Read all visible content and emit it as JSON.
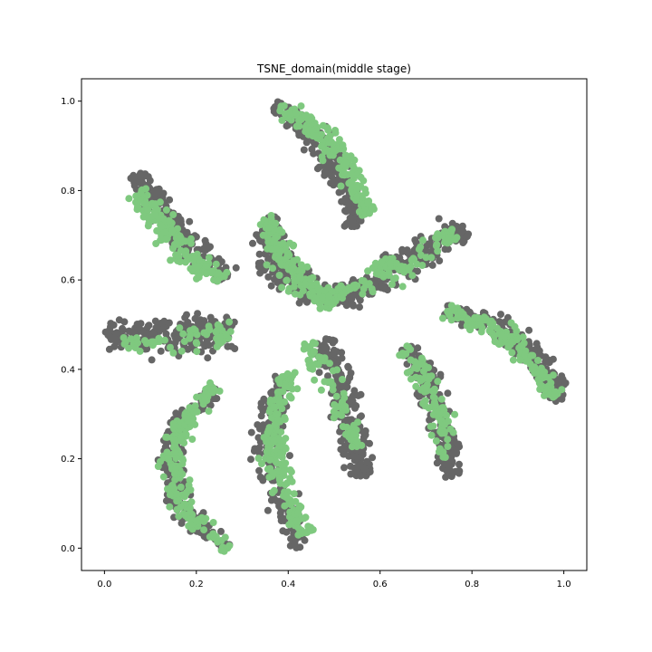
{
  "chart_data": {
    "type": "scatter",
    "title": "TSNE_domain(middle stage)",
    "xlabel": "",
    "ylabel": "",
    "xlim": [
      -0.05,
      1.05
    ],
    "ylim": [
      -0.05,
      1.05
    ],
    "grid": false,
    "legend": "none",
    "x_ticks": [
      0.0,
      0.2,
      0.4,
      0.6,
      0.8,
      1.0
    ],
    "x_tick_labels": [
      "0.0",
      "0.2",
      "0.4",
      "0.6",
      "0.8",
      "1.0"
    ],
    "y_ticks": [
      0.0,
      0.2,
      0.4,
      0.6,
      0.8,
      1.0
    ],
    "y_tick_labels": [
      "0.0",
      "0.2",
      "0.4",
      "0.6",
      "0.8",
      "1.0"
    ],
    "series": [
      {
        "color": "#666666",
        "clusters": [
          {
            "path": [
              [
                0.0,
                0.48
              ],
              [
                0.08,
                0.48
              ],
              [
                0.16,
                0.48
              ],
              [
                0.22,
                0.48
              ],
              [
                0.28,
                0.48
              ]
            ],
            "width": 0.045,
            "n": 220
          },
          {
            "path": [
              [
                0.07,
                0.84
              ],
              [
                0.11,
                0.77
              ],
              [
                0.16,
                0.71
              ],
              [
                0.21,
                0.66
              ],
              [
                0.27,
                0.6
              ]
            ],
            "width": 0.03,
            "n": 200
          },
          {
            "path": [
              [
                0.36,
                0.74
              ],
              [
                0.36,
                0.68
              ],
              [
                0.38,
                0.63
              ],
              [
                0.43,
                0.58
              ],
              [
                0.48,
                0.56
              ]
            ],
            "width": 0.04,
            "n": 240
          },
          {
            "path": [
              [
                0.37,
                0.99
              ],
              [
                0.44,
                0.94
              ],
              [
                0.49,
                0.88
              ],
              [
                0.53,
                0.8
              ],
              [
                0.55,
                0.72
              ]
            ],
            "width": 0.03,
            "n": 220
          },
          {
            "path": [
              [
                0.5,
                0.56
              ],
              [
                0.58,
                0.59
              ],
              [
                0.66,
                0.64
              ],
              [
                0.74,
                0.69
              ],
              [
                0.78,
                0.71
              ]
            ],
            "width": 0.04,
            "n": 230
          },
          {
            "path": [
              [
                0.74,
                0.53
              ],
              [
                0.84,
                0.51
              ],
              [
                0.91,
                0.46
              ],
              [
                0.96,
                0.4
              ],
              [
                0.99,
                0.33
              ]
            ],
            "width": 0.03,
            "n": 220
          },
          {
            "path": [
              [
                0.66,
                0.45
              ],
              [
                0.7,
                0.38
              ],
              [
                0.73,
                0.31
              ],
              [
                0.75,
                0.24
              ],
              [
                0.76,
                0.16
              ]
            ],
            "width": 0.03,
            "n": 200
          },
          {
            "path": [
              [
                0.48,
                0.47
              ],
              [
                0.5,
                0.4
              ],
              [
                0.53,
                0.32
              ],
              [
                0.55,
                0.23
              ],
              [
                0.56,
                0.16
              ]
            ],
            "width": 0.035,
            "n": 230
          },
          {
            "path": [
              [
                0.39,
                0.38
              ],
              [
                0.36,
                0.3
              ],
              [
                0.36,
                0.2
              ],
              [
                0.39,
                0.1
              ],
              [
                0.43,
                0.0
              ]
            ],
            "width": 0.032,
            "n": 220
          },
          {
            "path": [
              [
                0.24,
                0.35
              ],
              [
                0.16,
                0.28
              ],
              [
                0.14,
                0.18
              ],
              [
                0.18,
                0.07
              ],
              [
                0.27,
                0.0
              ]
            ],
            "width": 0.026,
            "n": 220
          }
        ]
      },
      {
        "color": "#7fc97f",
        "clusters": [
          {
            "path": [
              [
                0.02,
                0.46
              ],
              [
                0.1,
                0.46
              ],
              [
                0.18,
                0.47
              ],
              [
                0.24,
                0.48
              ],
              [
                0.28,
                0.48
              ]
            ],
            "width": 0.03,
            "n": 60
          },
          {
            "path": [
              [
                0.07,
                0.8
              ],
              [
                0.11,
                0.74
              ],
              [
                0.15,
                0.69
              ],
              [
                0.2,
                0.64
              ],
              [
                0.26,
                0.6
              ]
            ],
            "width": 0.03,
            "n": 150
          },
          {
            "path": [
              [
                0.35,
                0.74
              ],
              [
                0.38,
                0.68
              ],
              [
                0.4,
                0.63
              ],
              [
                0.45,
                0.58
              ],
              [
                0.5,
                0.55
              ]
            ],
            "width": 0.035,
            "n": 180
          },
          {
            "path": [
              [
                0.38,
                0.99
              ],
              [
                0.46,
                0.94
              ],
              [
                0.51,
                0.88
              ],
              [
                0.55,
                0.8
              ],
              [
                0.58,
                0.75
              ]
            ],
            "width": 0.026,
            "n": 180
          },
          {
            "path": [
              [
                0.5,
                0.56
              ],
              [
                0.58,
                0.6
              ],
              [
                0.65,
                0.64
              ],
              [
                0.72,
                0.68
              ],
              [
                0.76,
                0.71
              ]
            ],
            "width": 0.03,
            "n": 110
          },
          {
            "path": [
              [
                0.74,
                0.53
              ],
              [
                0.83,
                0.5
              ],
              [
                0.9,
                0.45
              ],
              [
                0.95,
                0.39
              ],
              [
                0.98,
                0.34
              ]
            ],
            "width": 0.026,
            "n": 150
          },
          {
            "path": [
              [
                0.65,
                0.45
              ],
              [
                0.69,
                0.39
              ],
              [
                0.72,
                0.33
              ],
              [
                0.74,
                0.26
              ],
              [
                0.74,
                0.18
              ]
            ],
            "width": 0.026,
            "n": 90
          },
          {
            "path": [
              [
                0.44,
                0.46
              ],
              [
                0.47,
                0.41
              ],
              [
                0.5,
                0.35
              ],
              [
                0.53,
                0.28
              ],
              [
                0.55,
                0.22
              ]
            ],
            "width": 0.025,
            "n": 70
          },
          {
            "path": [
              [
                0.4,
                0.39
              ],
              [
                0.37,
                0.3
              ],
              [
                0.37,
                0.2
              ],
              [
                0.4,
                0.1
              ],
              [
                0.44,
                0.03
              ]
            ],
            "width": 0.028,
            "n": 190
          },
          {
            "path": [
              [
                0.24,
                0.36
              ],
              [
                0.17,
                0.28
              ],
              [
                0.15,
                0.18
              ],
              [
                0.18,
                0.07
              ],
              [
                0.27,
                0.0
              ]
            ],
            "width": 0.024,
            "n": 190
          }
        ]
      }
    ]
  }
}
